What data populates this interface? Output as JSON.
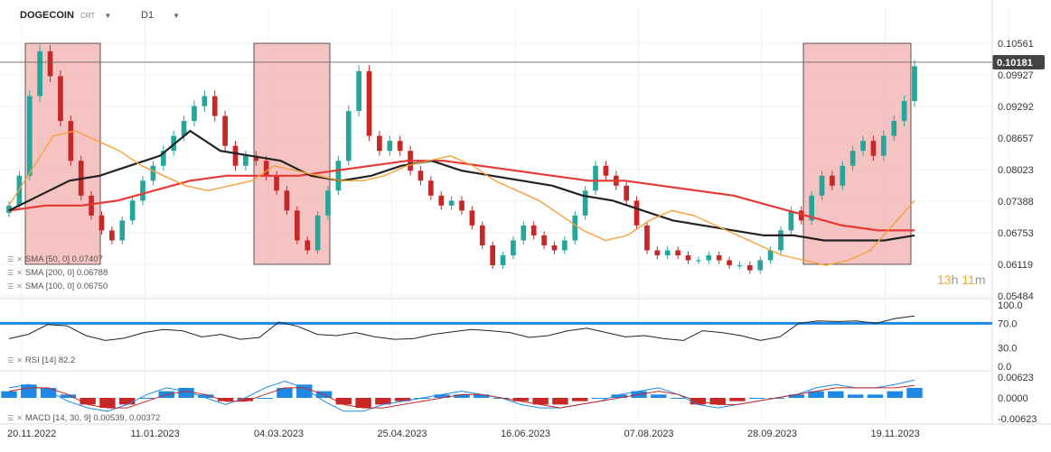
{
  "header": {
    "symbol": "DOGECOIN",
    "symbol_sub": "CRT",
    "timeframe": "D1"
  },
  "legend": {
    "sma50": "SMA [50, 0] 0.07407",
    "sma200": "SMA [200, 0] 0.06788",
    "sma100": "SMA [100, 0] 0.06750",
    "rsi": "RSI [14] 82.2",
    "macd": "MACD [14, 30, 9] 0.00539, 0.00372"
  },
  "price_tag": "0.10181",
  "timer": {
    "hours": "13",
    "h_unit": "h",
    "minutes": "11",
    "m_unit": "m"
  },
  "colors": {
    "up_candle": "#26a69a",
    "down_candle": "#c62828",
    "sma50": "#f7a13b",
    "sma100": "#222222",
    "sma200": "#e53935",
    "highlight_box": "#f4b8b8",
    "rsi_level": "#1e88e5",
    "macd_pos": "#1e88e5",
    "macd_neg": "#c62828"
  },
  "chart_data": {
    "type": "candlestick",
    "title": "DOGECOIN CRT D1",
    "x_ticks": [
      "20.11.2022",
      "11.01.2023",
      "04.03.2023",
      "25.04.2023",
      "16.06.2023",
      "07.08.2023",
      "28.09.2023",
      "19.11.2023"
    ],
    "price_ticks": [
      "0.10561",
      "0.09927",
      "0.09292",
      "0.08657",
      "0.08023",
      "0.07388",
      "0.06753",
      "0.06119",
      "0.05484"
    ],
    "ylim": [
      0.05484,
      0.10561
    ],
    "last_price": 0.10181,
    "close_series": [
      0.073,
      0.079,
      0.095,
      0.104,
      0.099,
      0.09,
      0.082,
      0.075,
      0.071,
      0.068,
      0.066,
      0.07,
      0.074,
      0.078,
      0.081,
      0.084,
      0.087,
      0.09,
      0.093,
      0.095,
      0.091,
      0.085,
      0.081,
      0.083,
      0.082,
      0.079,
      0.076,
      0.072,
      0.066,
      0.064,
      0.071,
      0.076,
      0.082,
      0.092,
      0.1,
      0.087,
      0.084,
      0.086,
      0.084,
      0.08,
      0.078,
      0.075,
      0.073,
      0.074,
      0.072,
      0.069,
      0.065,
      0.061,
      0.063,
      0.066,
      0.069,
      0.067,
      0.065,
      0.064,
      0.066,
      0.071,
      0.076,
      0.081,
      0.079,
      0.077,
      0.074,
      0.069,
      0.064,
      0.063,
      0.064,
      0.063,
      0.062,
      0.062,
      0.063,
      0.062,
      0.061,
      0.061,
      0.06,
      0.062,
      0.064,
      0.068,
      0.072,
      0.07,
      0.075,
      0.079,
      0.077,
      0.081,
      0.084,
      0.086,
      0.083,
      0.087,
      0.09,
      0.094,
      0.101
    ],
    "sma50": [
      0.073,
      0.08,
      0.087,
      0.088,
      0.086,
      0.084,
      0.081,
      0.079,
      0.077,
      0.076,
      0.077,
      0.078,
      0.081,
      0.08,
      0.079,
      0.078,
      0.078,
      0.079,
      0.081,
      0.082,
      0.083,
      0.081,
      0.078,
      0.076,
      0.074,
      0.071,
      0.068,
      0.066,
      0.067,
      0.07,
      0.072,
      0.071,
      0.069,
      0.067,
      0.065,
      0.063,
      0.062,
      0.061,
      0.062,
      0.064,
      0.069,
      0.074
    ],
    "sma100": [
      0.072,
      0.075,
      0.078,
      0.079,
      0.081,
      0.083,
      0.088,
      0.084,
      0.083,
      0.082,
      0.079,
      0.078,
      0.079,
      0.081,
      0.082,
      0.08,
      0.079,
      0.078,
      0.077,
      0.075,
      0.074,
      0.072,
      0.07,
      0.069,
      0.068,
      0.067,
      0.067,
      0.066,
      0.066,
      0.066,
      0.067
    ],
    "sma200": [
      0.072,
      0.073,
      0.073,
      0.074,
      0.076,
      0.078,
      0.079,
      0.079,
      0.079,
      0.08,
      0.081,
      0.082,
      0.082,
      0.081,
      0.08,
      0.079,
      0.078,
      0.078,
      0.077,
      0.076,
      0.075,
      0.073,
      0.071,
      0.069,
      0.068,
      0.068
    ],
    "highlight_ranges": [
      {
        "from": "20.11.2022",
        "to": "11.01.2023",
        "low": 0.06119,
        "high": 0.10561
      },
      {
        "from": "04.03.2023",
        "to": "04.03.2023",
        "low": 0.06119,
        "high": 0.10561
      },
      {
        "from": "28.09.2023",
        "to": "19.11.2023",
        "low": 0.06119,
        "high": 0.10561
      }
    ],
    "rsi": {
      "ticks": [
        "100.0",
        "70.0",
        "30.0",
        "0.0"
      ],
      "ylim": [
        0,
        100
      ],
      "level": 70,
      "current": 82.2,
      "values": [
        45,
        52,
        68,
        66,
        50,
        42,
        46,
        55,
        60,
        58,
        48,
        52,
        44,
        47,
        72,
        65,
        52,
        50,
        55,
        48,
        44,
        45,
        52,
        56,
        60,
        58,
        55,
        47,
        50,
        58,
        62,
        55,
        48,
        50,
        45,
        42,
        58,
        55,
        50,
        42,
        48,
        70,
        74,
        73,
        74,
        70,
        78,
        82
      ]
    },
    "macd": {
      "ticks": [
        "0.00623",
        "0.0000",
        "-0.00623"
      ],
      "ylim": [
        -0.00623,
        0.00623
      ],
      "macd": 0.00539,
      "signal": 0.00372,
      "histogram": [
        0.002,
        0.004,
        0.003,
        0.001,
        -0.002,
        -0.003,
        -0.002,
        0.0,
        0.002,
        0.003,
        0.001,
        -0.001,
        -0.001,
        0.0,
        0.003,
        0.004,
        0.002,
        -0.002,
        -0.003,
        -0.002,
        -0.001,
        0.0,
        0.001,
        0.001,
        0.001,
        0.0,
        -0.001,
        -0.002,
        -0.002,
        -0.001,
        0.0,
        0.001,
        0.002,
        0.001,
        0.0,
        -0.002,
        -0.002,
        -0.001,
        0.0,
        0.0,
        0.001,
        0.002,
        0.002,
        0.001,
        0.001,
        0.002,
        0.003
      ],
      "macd_line": [
        0.003,
        0.004,
        0.002,
        -0.001,
        -0.003,
        -0.004,
        -0.002,
        0.001,
        0.003,
        0.002,
        0.0,
        -0.002,
        0.0,
        0.003,
        0.005,
        0.003,
        -0.001,
        -0.004,
        -0.004,
        -0.002,
        -0.001,
        0.0,
        0.001,
        0.002,
        0.001,
        0.0,
        -0.002,
        -0.003,
        -0.003,
        -0.002,
        -0.001,
        0.001,
        0.002,
        0.003,
        0.001,
        -0.002,
        -0.003,
        -0.002,
        -0.001,
        0.0,
        0.001,
        0.003,
        0.004,
        0.003,
        0.003,
        0.004,
        0.0054
      ],
      "signal_line": [
        0.002,
        0.003,
        0.003,
        0.001,
        -0.002,
        -0.003,
        -0.003,
        -0.001,
        0.001,
        0.002,
        0.001,
        -0.001,
        -0.001,
        0.001,
        0.003,
        0.003,
        0.001,
        -0.002,
        -0.003,
        -0.003,
        -0.002,
        -0.001,
        0.0,
        0.001,
        0.001,
        0.0,
        -0.001,
        -0.002,
        -0.003,
        -0.002,
        -0.001,
        0.0,
        0.001,
        0.002,
        0.001,
        -0.001,
        -0.002,
        -0.002,
        -0.001,
        0.0,
        0.001,
        0.002,
        0.003,
        0.003,
        0.003,
        0.003,
        0.0037
      ]
    }
  }
}
